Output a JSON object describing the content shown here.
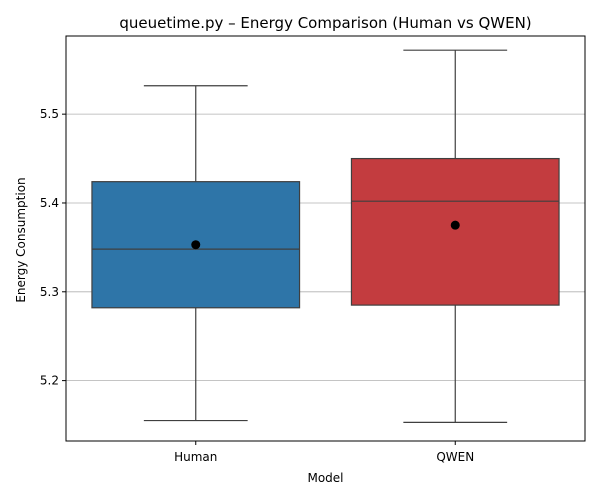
{
  "chart_data": {
    "type": "box",
    "title": "queuetime.py – Energy Comparison (Human vs QWEN)",
    "xlabel": "Model",
    "ylabel": "Energy Consumption",
    "ylim": [
      5.132,
      5.588
    ],
    "yticks": [
      5.2,
      5.3,
      5.4,
      5.5
    ],
    "ytick_labels": [
      "5.2",
      "5.3",
      "5.4",
      "5.5"
    ],
    "grid": "horizontal",
    "categories": [
      "Human",
      "QWEN"
    ],
    "boxes": [
      {
        "category": "Human",
        "whisker_low": 5.155,
        "q1": 5.282,
        "median": 5.348,
        "q3": 5.424,
        "whisker_high": 5.532,
        "mean": 5.353,
        "color": "#2e75a8"
      },
      {
        "category": "QWEN",
        "whisker_low": 5.153,
        "q1": 5.285,
        "median": 5.402,
        "q3": 5.45,
        "whisker_high": 5.572,
        "mean": 5.375,
        "color": "#c33c3f"
      }
    ]
  }
}
